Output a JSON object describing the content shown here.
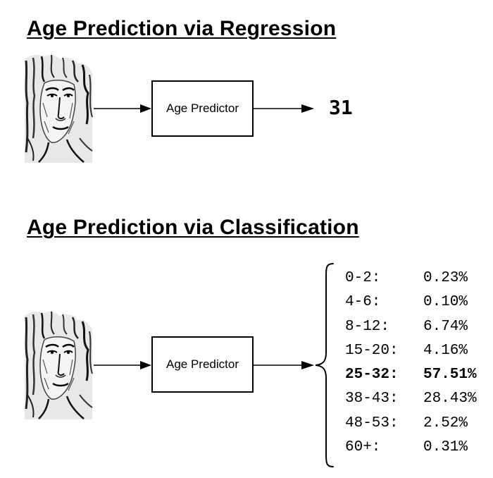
{
  "regression": {
    "title": "Age Prediction via Regression",
    "predictor_label": "Age Predictor",
    "output": "31"
  },
  "classification": {
    "title": "Age Prediction via Classification",
    "predictor_label": "Age Predictor",
    "probabilities": [
      {
        "range": "0-2:",
        "prob": "0.23%"
      },
      {
        "range": "4-6:",
        "prob": "0.10%"
      },
      {
        "range": "8-12:",
        "prob": "6.74%"
      },
      {
        "range": "15-20:",
        "prob": "4.16%"
      },
      {
        "range": "25-32:",
        "prob": "57.51%",
        "highlight": true
      },
      {
        "range": "38-43:",
        "prob": "28.43%"
      },
      {
        "range": "48-53:",
        "prob": "2.52%"
      },
      {
        "range": "60+:",
        "prob": "0.31%"
      }
    ]
  },
  "icons": {
    "input_image": "face-photo-icon",
    "arrow": "right-arrow-icon",
    "brace": "curly-brace-icon"
  }
}
